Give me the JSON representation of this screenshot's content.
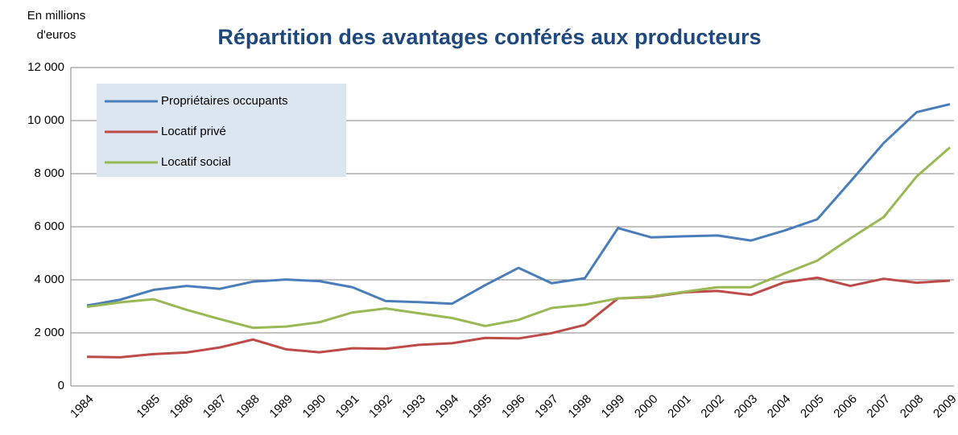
{
  "chart_data": {
    "type": "line",
    "title": "Répartition des avantages conférés aux producteurs",
    "y_label": [
      "En millions",
      "d'euros"
    ],
    "categories": [
      "1984",
      null,
      "1985",
      "1986",
      "1987",
      "1988",
      "1989",
      "1990",
      "1991",
      "1992",
      "1993",
      "1994",
      "1995",
      "1996",
      "1997",
      "1998",
      "1999",
      "2000",
      "2001",
      "2002",
      "2003",
      "2004",
      "2005",
      "2006",
      "2007",
      "2008",
      "2009"
    ],
    "series": [
      {
        "name": "Propriétaires occupants",
        "color": "#4a7ebb",
        "values": [
          3030,
          3250,
          3620,
          3770,
          3660,
          3930,
          4010,
          3950,
          3720,
          3200,
          3160,
          3100,
          3800,
          4450,
          3870,
          4060,
          5950,
          5600,
          5640,
          5670,
          5480,
          5850,
          6280,
          7700,
          9150,
          10320,
          10620
        ]
      },
      {
        "name": "Locatif privé",
        "color": "#be4b48",
        "values": [
          1100,
          1080,
          1200,
          1260,
          1450,
          1750,
          1380,
          1270,
          1420,
          1400,
          1550,
          1610,
          1810,
          1790,
          1990,
          2300,
          3300,
          3350,
          3530,
          3580,
          3430,
          3900,
          4080,
          3770,
          4040,
          3890,
          3970
        ]
      },
      {
        "name": "Locatif social",
        "color": "#98b954",
        "values": [
          2980,
          3150,
          3270,
          2870,
          2520,
          2190,
          2240,
          2400,
          2770,
          2920,
          2740,
          2560,
          2260,
          2490,
          2940,
          3060,
          3300,
          3370,
          3550,
          3720,
          3720,
          4230,
          4720,
          5560,
          6360,
          7900,
          8990
        ]
      }
    ],
    "ylim": [
      0,
      12000
    ],
    "yticks": [
      0,
      {
        "value": 2000,
        "label": "2 000"
      },
      {
        "value": 4000,
        "label": "4 000"
      },
      {
        "value": 6000,
        "label": "6 000"
      },
      {
        "value": 8000,
        "label": "8 000"
      },
      {
        "value": 10000,
        "label": "10 000"
      },
      {
        "value": 12000,
        "label": "12 000"
      }
    ],
    "grid": true,
    "legend": "upper left"
  }
}
